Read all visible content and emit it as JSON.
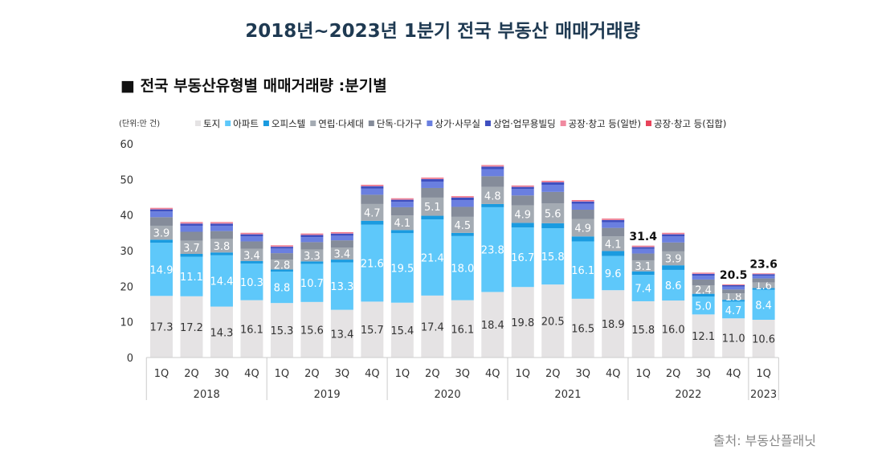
{
  "title": "2018년~2023년 1분기 전국 부동산 매매거래량",
  "subtitle": "■ 전국 부동산유형별 매매거래량 :분기별",
  "source": "출처: 부동산플래닛",
  "chart_data": {
    "type": "bar",
    "stacked": true,
    "unit_label": "(단위:만 건)",
    "ylim": [
      0,
      60
    ],
    "yticks": [
      0,
      10,
      20,
      30,
      40,
      50,
      60
    ],
    "grid": false,
    "legend_position": "top",
    "categories": [
      "1Q",
      "2Q",
      "3Q",
      "4Q",
      "1Q",
      "2Q",
      "3Q",
      "4Q",
      "1Q",
      "2Q",
      "3Q",
      "4Q",
      "1Q",
      "2Q",
      "3Q",
      "4Q",
      "1Q",
      "2Q",
      "3Q",
      "4Q",
      "1Q"
    ],
    "groups": [
      {
        "label": "2018",
        "count": 4
      },
      {
        "label": "2019",
        "count": 4
      },
      {
        "label": "2020",
        "count": 4
      },
      {
        "label": "2021",
        "count": 4
      },
      {
        "label": "2022",
        "count": 4
      },
      {
        "label": "2023",
        "count": 1
      }
    ],
    "series": [
      {
        "name": "토지",
        "color": "#e5e3e4",
        "labeled": true,
        "label_color": "#333333",
        "values": [
          17.3,
          17.2,
          14.3,
          16.1,
          15.3,
          15.6,
          13.4,
          15.7,
          15.4,
          17.4,
          16.1,
          18.4,
          19.8,
          20.5,
          16.5,
          18.9,
          15.8,
          16.0,
          12.1,
          11.0,
          10.6
        ]
      },
      {
        "name": "아파트",
        "color": "#5ec8fa",
        "labeled": true,
        "label_color": "#ffffff",
        "values": [
          14.9,
          11.1,
          14.4,
          10.3,
          8.8,
          10.7,
          13.3,
          21.6,
          19.5,
          21.4,
          18.0,
          23.8,
          16.7,
          15.8,
          16.1,
          9.6,
          7.4,
          8.6,
          5.0,
          4.7,
          8.4
        ]
      },
      {
        "name": "오피스텔",
        "color": "#1a9be0",
        "labeled": false,
        "values": [
          0.9,
          0.8,
          0.8,
          0.7,
          0.6,
          0.7,
          0.8,
          1.1,
          0.9,
          1.0,
          0.9,
          0.9,
          1.3,
          1.4,
          1.4,
          1.4,
          1.0,
          1.3,
          0.8,
          0.5,
          0.5
        ]
      },
      {
        "name": "연립·다세대",
        "color": "#a4abb3",
        "labeled": true,
        "label_color": "#ffffff",
        "values": [
          3.9,
          3.7,
          3.8,
          3.4,
          2.8,
          3.3,
          3.4,
          4.7,
          4.1,
          5.1,
          4.5,
          4.8,
          4.9,
          5.6,
          4.9,
          4.1,
          3.1,
          3.9,
          2.4,
          1.8,
          1.6
        ]
      },
      {
        "name": "단독·다가구",
        "color": "#858c9a",
        "labeled": false,
        "values": [
          2.4,
          2.5,
          2.2,
          2.1,
          1.8,
          2.1,
          2.0,
          2.6,
          2.3,
          2.7,
          2.8,
          3.0,
          2.8,
          3.2,
          2.6,
          2.4,
          1.9,
          2.5,
          1.6,
          1.1,
          1.1
        ]
      },
      {
        "name": "상가·사무실",
        "color": "#6a7fe0",
        "labeled": false,
        "values": [
          1.6,
          1.7,
          1.5,
          1.4,
          1.3,
          1.4,
          1.3,
          1.7,
          1.5,
          1.8,
          1.9,
          2.0,
          1.8,
          2.0,
          1.7,
          1.6,
          1.3,
          1.7,
          1.1,
          0.8,
          0.8
        ]
      },
      {
        "name": "상업·업무용빌딩",
        "color": "#3f4fc0",
        "labeled": false,
        "values": [
          0.6,
          0.6,
          0.6,
          0.6,
          0.5,
          0.6,
          0.6,
          0.7,
          0.6,
          0.7,
          0.7,
          0.7,
          0.6,
          0.7,
          0.6,
          0.6,
          0.5,
          0.6,
          0.5,
          0.4,
          0.4
        ]
      },
      {
        "name": "공장·창고 등(일반)",
        "color": "#f08aa0",
        "labeled": false,
        "values": [
          0.3,
          0.3,
          0.3,
          0.3,
          0.3,
          0.3,
          0.3,
          0.3,
          0.3,
          0.3,
          0.3,
          0.3,
          0.3,
          0.3,
          0.3,
          0.3,
          0.3,
          0.3,
          0.2,
          0.1,
          0.1
        ]
      },
      {
        "name": "공장·창고 등(집합)",
        "color": "#e8435a",
        "labeled": false,
        "values": [
          0.1,
          0.1,
          0.1,
          0.1,
          0.1,
          0.1,
          0.1,
          0.1,
          0.1,
          0.1,
          0.1,
          0.1,
          0.1,
          0.1,
          0.1,
          0.1,
          0.1,
          0.1,
          0.1,
          0.1,
          0.1
        ]
      }
    ],
    "total_labels": [
      {
        "index": 16,
        "text": "31.4"
      },
      {
        "index": 19,
        "text": "20.5"
      },
      {
        "index": 20,
        "text": "23.6"
      }
    ]
  }
}
